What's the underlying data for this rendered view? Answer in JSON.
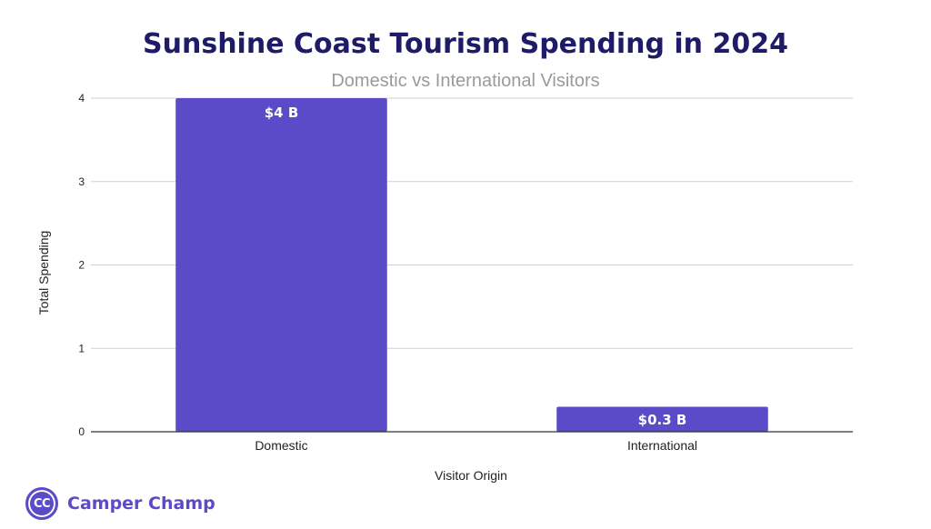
{
  "chart_data": {
    "type": "bar",
    "title": "Sunshine Coast Tourism Spending in 2024",
    "subtitle": "Domestic vs International Visitors",
    "xlabel": "Visitor Origin",
    "ylabel": "Total Spending",
    "categories": [
      "Domestic",
      "International"
    ],
    "values": [
      4,
      0.3
    ],
    "data_labels": [
      "$4 B",
      "$0.3 B"
    ],
    "yticks": [
      "0",
      "1",
      "2",
      "3",
      "4"
    ],
    "ylim": [
      0,
      4
    ],
    "grid": true,
    "legend": "none",
    "bar_color": "#5b4bc9"
  },
  "brand": {
    "logo_text": "CC",
    "name": "Camper Champ"
  }
}
